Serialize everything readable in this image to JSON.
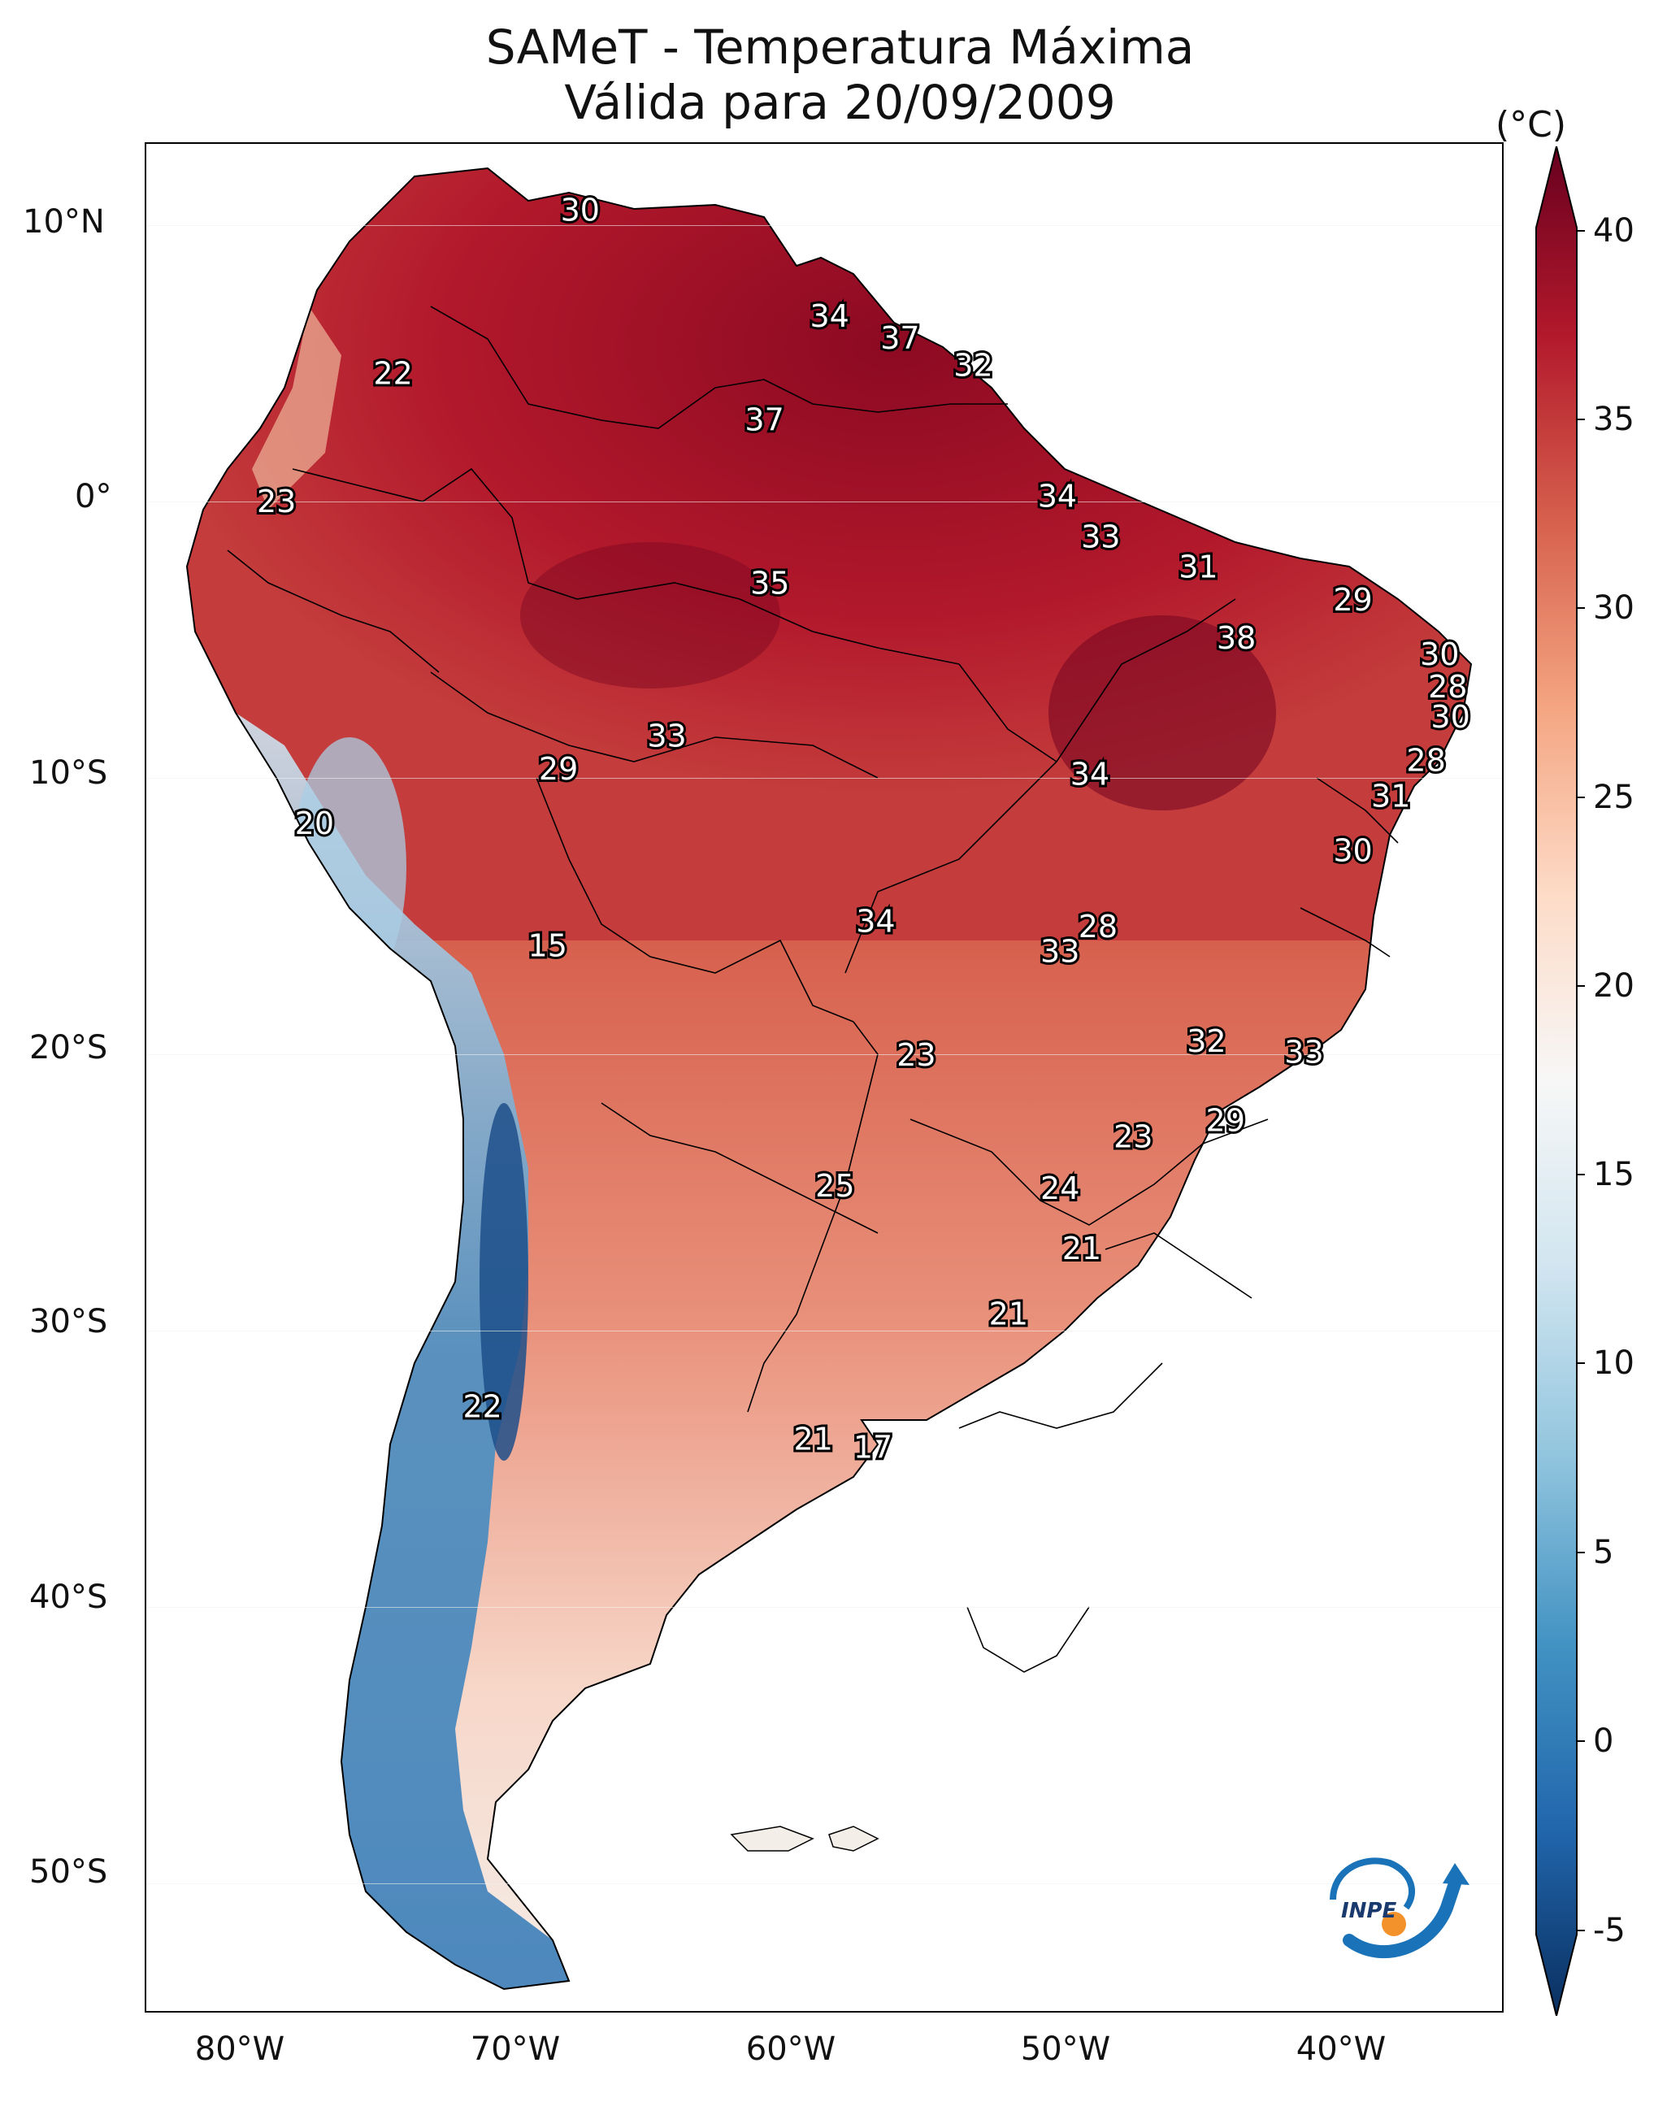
{
  "title": {
    "line1": "SAMeT - Temperatura Máxima",
    "line2": "Válida para 20/09/2009"
  },
  "axes": {
    "lat_ticks": [
      "10°N",
      "0°",
      "10°S",
      "20°S",
      "30°S",
      "40°S",
      "50°S"
    ],
    "lon_ticks": [
      "80°W",
      "70°W",
      "60°W",
      "50°W",
      "40°W"
    ]
  },
  "colorbar": {
    "unit": "(°C)",
    "ticks": [
      "40",
      "35",
      "30",
      "25",
      "20",
      "15",
      "10",
      "5",
      "0",
      "-5"
    ],
    "range": [
      -7,
      40
    ],
    "colors": [
      "#0a2f60",
      "#2166ac",
      "#4393c3",
      "#92c5de",
      "#d1e5f0",
      "#f7f7f7",
      "#fddbc7",
      "#f4a582",
      "#d6604d",
      "#b2182b",
      "#67001f"
    ]
  },
  "station_labels": [
    {
      "value": "30",
      "lon": -67,
      "lat": 10.5
    },
    {
      "value": "34",
      "lon": -57.8,
      "lat": 6.6
    },
    {
      "value": "37",
      "lon": -55.2,
      "lat": 5.8
    },
    {
      "value": "32",
      "lon": -52.5,
      "lat": 4.8
    },
    {
      "value": "22",
      "lon": -73.9,
      "lat": 4.5
    },
    {
      "value": "37",
      "lon": -60.2,
      "lat": 2.8
    },
    {
      "value": "34",
      "lon": -49.4,
      "lat": 0.0
    },
    {
      "value": "23",
      "lon": -78.2,
      "lat": -0.2
    },
    {
      "value": "33",
      "lon": -47.8,
      "lat": -1.5
    },
    {
      "value": "31",
      "lon": -44.2,
      "lat": -2.6
    },
    {
      "value": "35",
      "lon": -60.0,
      "lat": -3.2
    },
    {
      "value": "29",
      "lon": -38.5,
      "lat": -3.8
    },
    {
      "value": "38",
      "lon": -42.8,
      "lat": -5.2
    },
    {
      "value": "30",
      "lon": -35.3,
      "lat": -5.8
    },
    {
      "value": "28",
      "lon": -35.0,
      "lat": -7.0
    },
    {
      "value": "30",
      "lon": -34.9,
      "lat": -8.1
    },
    {
      "value": "33",
      "lon": -63.8,
      "lat": -8.8
    },
    {
      "value": "29",
      "lon": -67.8,
      "lat": -10.0
    },
    {
      "value": "34",
      "lon": -48.2,
      "lat": -10.2
    },
    {
      "value": "28",
      "lon": -35.8,
      "lat": -9.7
    },
    {
      "value": "31",
      "lon": -37.1,
      "lat": -11.0
    },
    {
      "value": "20",
      "lon": -76.8,
      "lat": -12.0
    },
    {
      "value": "30",
      "lon": -38.5,
      "lat": -13.0
    },
    {
      "value": "34",
      "lon": -56.1,
      "lat": -15.6
    },
    {
      "value": "28",
      "lon": -47.9,
      "lat": -15.8
    },
    {
      "value": "33",
      "lon": -49.3,
      "lat": -16.7
    },
    {
      "value": "15",
      "lon": -68.2,
      "lat": -16.5
    },
    {
      "value": "32",
      "lon": -43.9,
      "lat": -20.0
    },
    {
      "value": "33",
      "lon": -40.3,
      "lat": -20.4
    },
    {
      "value": "23",
      "lon": -54.6,
      "lat": -20.5
    },
    {
      "value": "29",
      "lon": -43.2,
      "lat": -22.9
    },
    {
      "value": "23",
      "lon": -46.6,
      "lat": -23.5
    },
    {
      "value": "25",
      "lon": -57.6,
      "lat": -25.3
    },
    {
      "value": "24",
      "lon": -49.3,
      "lat": -25.4
    },
    {
      "value": "21",
      "lon": -48.5,
      "lat": -27.6
    },
    {
      "value": "21",
      "lon": -51.2,
      "lat": -30.0
    },
    {
      "value": "22",
      "lon": -70.6,
      "lat": -33.4
    },
    {
      "value": "21",
      "lon": -58.4,
      "lat": -34.6
    },
    {
      "value": "17",
      "lon": -56.2,
      "lat": -34.9
    }
  ],
  "logo": {
    "text": "INPE"
  }
}
